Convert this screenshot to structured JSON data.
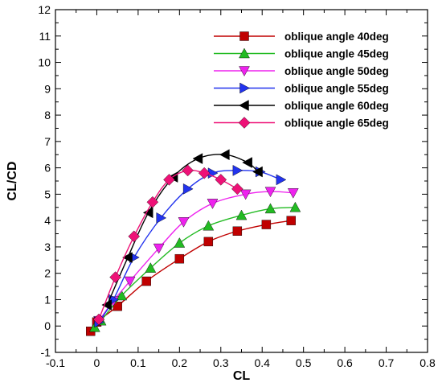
{
  "chart_data": {
    "type": "line",
    "title": "",
    "xlabel": "CL",
    "ylabel": "CL/CD",
    "xlim": [
      -0.1,
      0.8
    ],
    "ylim": [
      -1,
      12
    ],
    "xticks": [
      -0.1,
      0,
      0.1,
      0.2,
      0.3,
      0.4,
      0.5,
      0.6,
      0.7,
      0.8
    ],
    "yticks": [
      -1,
      0,
      1,
      2,
      3,
      4,
      5,
      6,
      7,
      8,
      9,
      10,
      11,
      12
    ],
    "xtick_labels": [
      "-0.1",
      "0",
      "0.1",
      "0.2",
      "0.3",
      "0.4",
      "0.5",
      "0.6",
      "0.7",
      "0.8"
    ],
    "ytick_labels": [
      "-1",
      "0",
      "1",
      "2",
      "3",
      "4",
      "5",
      "6",
      "7",
      "8",
      "9",
      "10",
      "11",
      "12"
    ],
    "grid": false,
    "legend_position": "top-right",
    "series": [
      {
        "name": "oblique angle 40deg",
        "color": "#c00000",
        "marker": "square",
        "x": [
          -0.015,
          0.0,
          0.05,
          0.12,
          0.2,
          0.27,
          0.34,
          0.41,
          0.47
        ],
        "y": [
          -0.2,
          0.15,
          0.75,
          1.7,
          2.55,
          3.2,
          3.6,
          3.85,
          4.0
        ]
      },
      {
        "name": "oblique angle 45deg",
        "color": "#22bb22",
        "marker": "triangle-up",
        "x": [
          -0.005,
          0.01,
          0.06,
          0.13,
          0.2,
          0.27,
          0.35,
          0.42,
          0.48
        ],
        "y": [
          -0.05,
          0.2,
          1.15,
          2.2,
          3.15,
          3.8,
          4.2,
          4.45,
          4.5
        ]
      },
      {
        "name": "oblique angle 50deg",
        "color": "#ee22ee",
        "marker": "triangle-down",
        "x": [
          0.005,
          0.04,
          0.08,
          0.15,
          0.21,
          0.28,
          0.36,
          0.42,
          0.475
        ],
        "y": [
          0.2,
          0.95,
          1.7,
          2.95,
          3.95,
          4.65,
          5.0,
          5.1,
          5.05
        ]
      },
      {
        "name": "oblique angle 55deg",
        "color": "#2233ee",
        "marker": "triangle-right",
        "x": [
          0.005,
          0.04,
          0.09,
          0.155,
          0.22,
          0.28,
          0.34,
          0.395,
          0.445
        ],
        "y": [
          0.15,
          1.0,
          2.6,
          4.1,
          5.2,
          5.8,
          5.9,
          5.85,
          5.55
        ]
      },
      {
        "name": "oblique angle 60deg",
        "color": "#000000",
        "marker": "triangle-left",
        "x": [
          0.025,
          0.075,
          0.125,
          0.185,
          0.245,
          0.31,
          0.365,
          0.39
        ],
        "y": [
          0.8,
          2.6,
          4.3,
          5.65,
          6.35,
          6.5,
          6.2,
          5.85
        ]
      },
      {
        "name": "oblique angle 65deg",
        "color": "#ee1177",
        "marker": "diamond",
        "x": [
          0.005,
          0.045,
          0.09,
          0.135,
          0.175,
          0.22,
          0.26,
          0.3,
          0.34
        ],
        "y": [
          0.25,
          1.85,
          3.4,
          4.7,
          5.55,
          5.9,
          5.8,
          5.55,
          5.2
        ]
      }
    ]
  }
}
